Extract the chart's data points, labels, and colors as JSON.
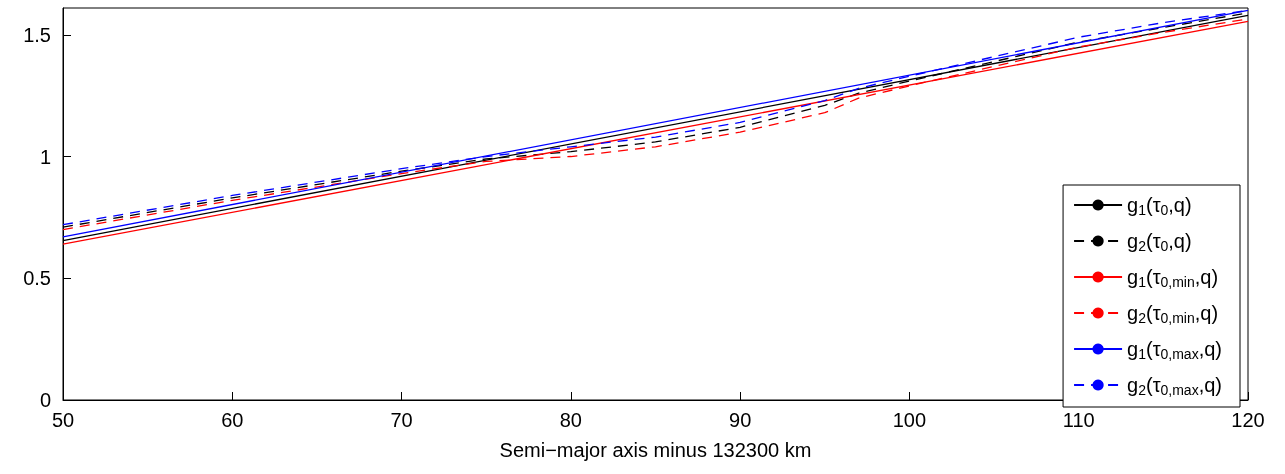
{
  "chart_data": {
    "type": "line",
    "xlabel": "Semi−major axis minus 132300 km",
    "xlim": [
      50,
      120
    ],
    "xticks": [
      50,
      60,
      70,
      80,
      90,
      100,
      110,
      120
    ],
    "ylim": [
      0,
      1.61
    ],
    "yticks": [
      0,
      0.5,
      1,
      1.5
    ],
    "grid": false,
    "legend": "right",
    "marker": "none",
    "series": [
      {
        "name": "g$_{1}$(τ$_{0}$,q)",
        "color": "#000000",
        "line_style": "solid",
        "x": [
          50,
          120
        ],
        "values": [
          0.655,
          1.58
        ]
      },
      {
        "name": "g$_{2}$(τ$_{0}$,q)",
        "color": "#000000",
        "line_style": "dashed",
        "x": [
          50,
          60,
          70,
          75,
          80,
          85,
          90,
          95,
          97,
          100,
          105,
          110,
          115,
          120
        ],
        "values": [
          0.71,
          0.83,
          0.94,
          0.99,
          1.02,
          1.06,
          1.12,
          1.21,
          1.26,
          1.31,
          1.39,
          1.47,
          1.53,
          1.59
        ]
      },
      {
        "name": "g$_{1}$(τ$_{0,min}$,q)",
        "color": "#ff0000",
        "line_style": "solid",
        "x": [
          50,
          120
        ],
        "values": [
          0.64,
          1.555
        ]
      },
      {
        "name": "g$_{2}$(τ$_{0,min}$,q)",
        "color": "#ff0000",
        "line_style": "dashed",
        "x": [
          50,
          60,
          70,
          75,
          80,
          85,
          90,
          95,
          97,
          100,
          105,
          110,
          115,
          120
        ],
        "values": [
          0.7,
          0.82,
          0.93,
          0.98,
          1.0,
          1.04,
          1.1,
          1.18,
          1.24,
          1.29,
          1.37,
          1.45,
          1.51,
          1.565
        ]
      },
      {
        "name": "g$_{1}$(τ$_{0,max}$,q)",
        "color": "#0000ff",
        "line_style": "solid",
        "x": [
          50,
          120
        ],
        "values": [
          0.67,
          1.6
        ]
      },
      {
        "name": "g$_{2}$(τ$_{0,max}$,q)",
        "color": "#0000ff",
        "line_style": "dashed",
        "x": [
          50,
          60,
          70,
          75,
          80,
          85,
          90,
          95,
          97,
          100,
          105,
          110,
          115,
          120
        ],
        "values": [
          0.72,
          0.84,
          0.95,
          1.0,
          1.04,
          1.08,
          1.14,
          1.23,
          1.28,
          1.33,
          1.41,
          1.49,
          1.55,
          1.6
        ]
      }
    ]
  }
}
